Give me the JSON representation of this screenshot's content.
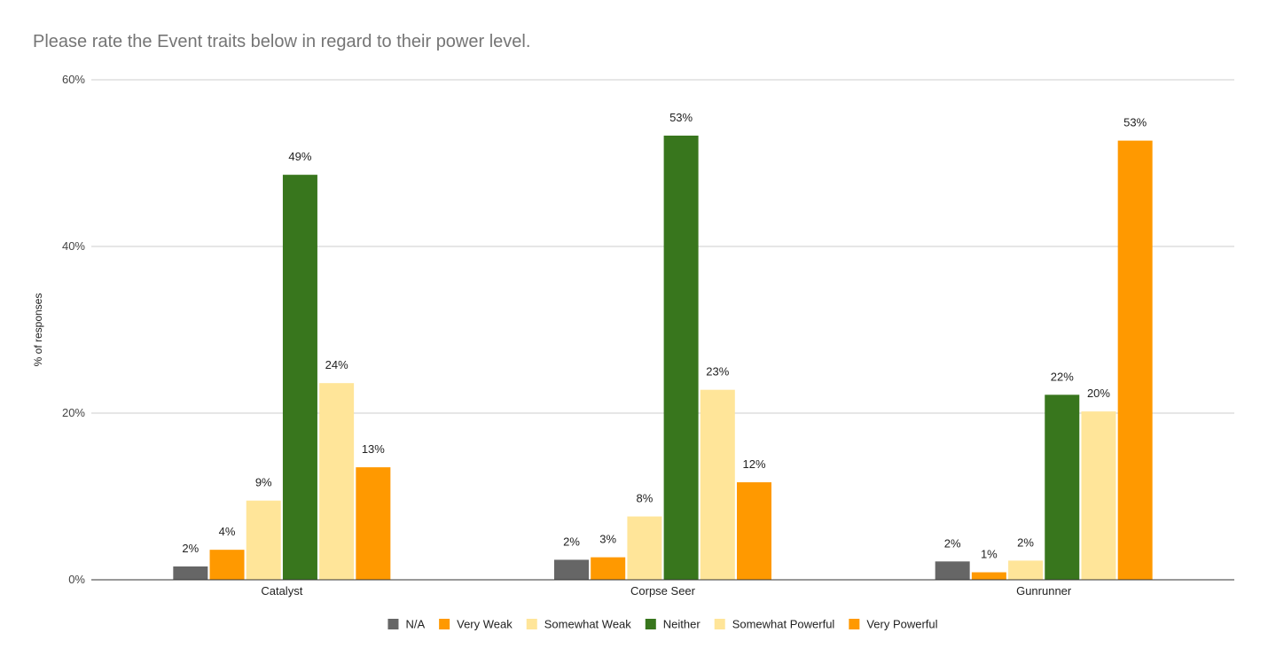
{
  "chart_data": {
    "type": "bar",
    "title": "Please rate the Event traits below in regard to their power level.",
    "xlabel": "",
    "ylabel": "% of responses",
    "ylim": [
      0,
      60
    ],
    "yticks": [
      0,
      20,
      40,
      60
    ],
    "ytick_labels": [
      "0%",
      "20%",
      "40%",
      "60%"
    ],
    "grid": true,
    "legend_position": "bottom",
    "categories": [
      "Catalyst",
      "Corpse Seer",
      "Gunrunner"
    ],
    "series": [
      {
        "name": "N/A",
        "color": "#666666",
        "values": [
          1.6,
          2.4,
          2.2
        ],
        "labels": [
          "2%",
          "2%",
          "2%"
        ]
      },
      {
        "name": "Very Weak",
        "color": "#ff9900",
        "values": [
          3.6,
          2.7,
          0.9
        ],
        "labels": [
          "4%",
          "3%",
          "1%"
        ]
      },
      {
        "name": "Somewhat Weak",
        "color": "#ffe599",
        "values": [
          9.5,
          7.6,
          2.3
        ],
        "labels": [
          "9%",
          "8%",
          "2%"
        ]
      },
      {
        "name": "Neither",
        "color": "#38761d",
        "values": [
          48.6,
          53.3,
          22.2
        ],
        "labels": [
          "49%",
          "53%",
          "22%"
        ]
      },
      {
        "name": "Somewhat Powerful",
        "color": "#ffe599",
        "values": [
          23.6,
          22.8,
          20.2
        ],
        "labels": [
          "24%",
          "23%",
          "20%"
        ]
      },
      {
        "name": "Very Powerful",
        "color": "#ff9900",
        "values": [
          13.5,
          11.7,
          52.7
        ],
        "labels": [
          "13%",
          "12%",
          "53%"
        ]
      }
    ]
  }
}
